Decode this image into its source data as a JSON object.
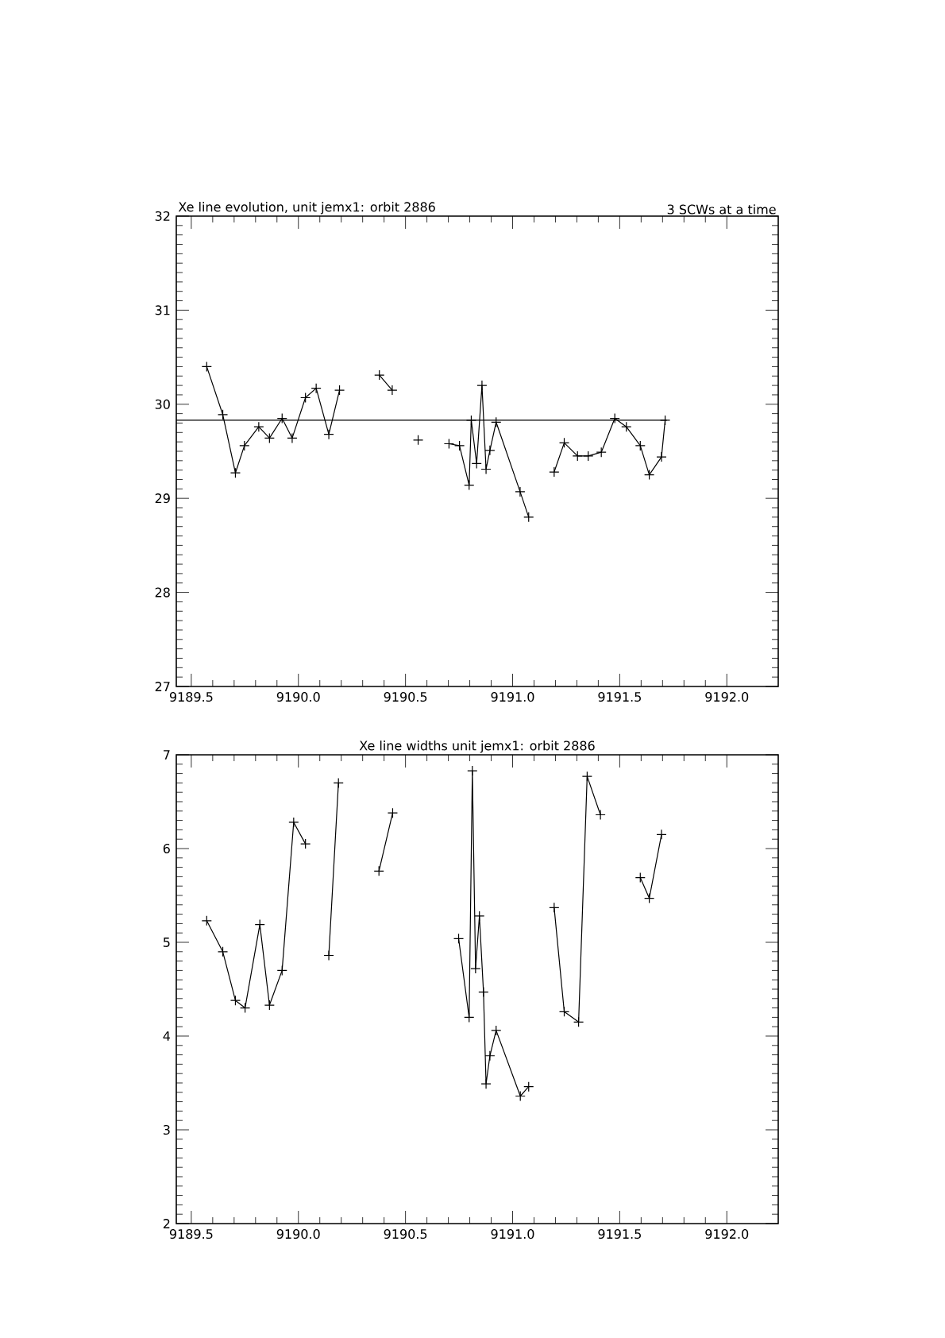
{
  "chart_data": [
    {
      "type": "line",
      "title": "Xe line evolution, unit jemx1: orbit 2886",
      "subtitle": "3 SCWs at a time",
      "marker": "cross",
      "line_style": "solid",
      "xlim": [
        9189.43,
        9192.24
      ],
      "ylim": [
        27,
        32
      ],
      "xticks": [
        {
          "value": 9189.5,
          "label": "9189.5"
        },
        {
          "value": 9190.0,
          "label": "9190.0"
        },
        {
          "value": 9190.5,
          "label": "9190.5"
        },
        {
          "value": 9191.0,
          "label": "9191.0"
        },
        {
          "value": 9191.5,
          "label": "9191.5"
        },
        {
          "value": 9192.0,
          "label": "9192.0"
        }
      ],
      "yticks": [
        27,
        28,
        29,
        30,
        31,
        32
      ],
      "series": [
        {
          "color": "#000000",
          "x": [
            9189.572,
            9189.647,
            9189.706,
            9189.748,
            9189.815,
            9189.865,
            9189.924,
            9189.971,
            9190.033,
            9190.083,
            9190.142,
            9190.192,
            9190.2,
            9190.37,
            9190.378,
            9190.438,
            9190.44,
            9190.55,
            9190.559,
            9190.7,
            9190.703,
            9190.752,
            9190.797,
            9190.807,
            9190.832,
            9190.857,
            9190.876,
            9190.894,
            9190.923,
            9191.035,
            9191.075,
            9191.08,
            9191.19,
            9191.194,
            9191.241,
            9191.303,
            9191.353,
            9191.414,
            9191.477,
            9191.531,
            9191.596,
            9191.638,
            9191.695,
            9191.712
          ],
          "values": [
            30.4,
            29.89,
            29.27,
            29.56,
            29.76,
            29.64,
            29.85,
            29.64,
            30.07,
            30.17,
            29.68,
            30.15,
            null,
            null,
            30.31,
            30.15,
            null,
            null,
            29.62,
            null,
            29.58,
            29.56,
            29.14,
            29.83,
            29.37,
            30.2,
            29.31,
            29.51,
            29.81,
            29.07,
            28.8,
            null,
            null,
            29.28,
            29.59,
            29.45,
            29.45,
            29.49,
            29.85,
            29.76,
            29.56,
            29.25,
            29.44,
            29.83
          ]
        },
        {
          "color": "#000000",
          "marker": "none",
          "x": [
            9189.43,
            9191.72
          ],
          "values": [
            29.83,
            29.83
          ]
        }
      ]
    },
    {
      "type": "line",
      "title": "Xe line widths unit jemx1: orbit 2886",
      "marker": "cross",
      "line_style": "solid",
      "xlim": [
        9189.43,
        9192.24
      ],
      "ylim": [
        2,
        7
      ],
      "xticks": [
        {
          "value": 9189.5,
          "label": "9189.5"
        },
        {
          "value": 9190.0,
          "label": "9190.0"
        },
        {
          "value": 9190.5,
          "label": "9190.5"
        },
        {
          "value": 9191.0,
          "label": "9191.0"
        },
        {
          "value": 9191.5,
          "label": "9191.5"
        },
        {
          "value": 9192.0,
          "label": "9192.0"
        }
      ],
      "yticks": [
        2,
        3,
        4,
        5,
        6,
        7
      ],
      "series": [
        {
          "color": "#000000",
          "x": [
            9189.572,
            9189.647,
            9189.706,
            9189.751,
            9189.82,
            9189.865,
            9189.924,
            9189.978,
            9190.033,
            9190.1,
            9190.142,
            9190.187,
            9190.2,
            9190.37,
            9190.376,
            9190.44,
            9190.45,
            9190.7,
            9190.748,
            9190.797,
            9190.812,
            9190.827,
            9190.845,
            9190.864,
            9190.876,
            9190.894,
            9190.923,
            9191.036,
            9191.075,
            9191.08,
            9191.19,
            9191.194,
            9191.241,
            9191.308,
            9191.348,
            9191.41,
            9191.45,
            9191.55,
            9191.596,
            9191.638,
            9191.695
          ],
          "values": [
            5.23,
            4.9,
            4.38,
            4.3,
            5.19,
            4.33,
            4.7,
            6.28,
            6.05,
            null,
            4.86,
            6.7,
            null,
            null,
            5.76,
            6.38,
            null,
            null,
            5.04,
            4.2,
            6.83,
            4.72,
            5.28,
            4.47,
            3.49,
            3.79,
            4.06,
            3.36,
            3.46,
            null,
            null,
            5.37,
            4.26,
            4.15,
            6.77,
            6.36,
            null,
            null,
            5.69,
            5.47,
            6.15
          ]
        }
      ]
    }
  ]
}
